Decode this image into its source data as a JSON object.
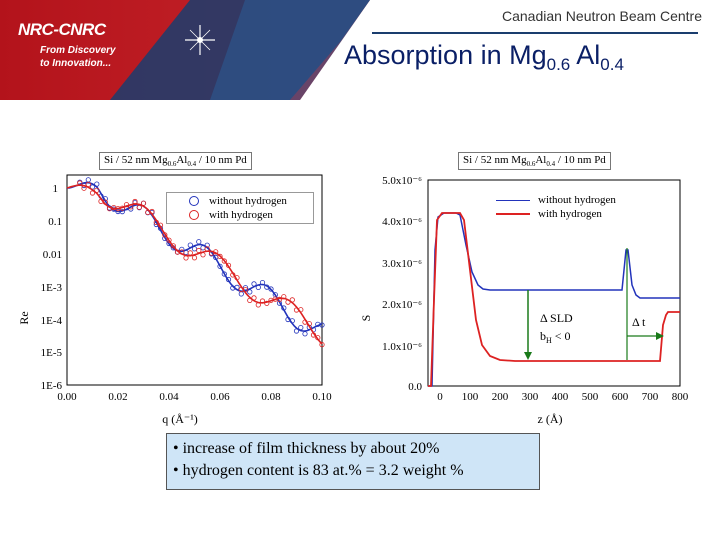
{
  "header": {
    "logo": "NRC-CNRC",
    "tagline_line1": "From Discovery",
    "tagline_line2": "to Innovation...",
    "org": "Canadian Neutron Beam Centre",
    "title_main": "Absorption in Mg",
    "title_sub1": "0.6",
    "title_mid": " Al",
    "title_sub2": "0.4"
  },
  "left_chart": {
    "title_part1": "Si / 52 nm Mg",
    "title_sub1": "0.6",
    "title_part2": "Al",
    "title_sub2": "0.4",
    "title_part3": " / 10 nm Pd",
    "y_ticks": [
      "1",
      "0.1",
      "0.01",
      "1E-3",
      "1E-4",
      "1E-5",
      "1E-6"
    ],
    "x_ticks": [
      "0.00",
      "0.02",
      "0.04",
      "0.06",
      "0.08",
      "0.10"
    ],
    "xlabel": "q (Å⁻¹)",
    "ylabel": "Re",
    "legend": [
      "without hydrogen",
      "with hydrogen"
    ],
    "colors": {
      "without": "#2233bb",
      "with": "#dd2222"
    }
  },
  "right_chart": {
    "title_part1": "Si / 52 nm Mg",
    "title_sub1": "0.6",
    "title_part2": "Al",
    "title_sub2": "0.4",
    "title_part3": " / 10 nm Pd",
    "y_ticks": [
      "5.0x10⁻⁶",
      "4.0x10⁻⁶",
      "3.0x10⁻⁶",
      "2.0x10⁻⁶",
      "1.0x10⁻⁶",
      "0.0"
    ],
    "x_ticks": [
      "0",
      "100",
      "200",
      "300",
      "400",
      "500",
      "600",
      "700",
      "800"
    ],
    "xlabel": "z (Å)",
    "ylabel": "S",
    "legend": [
      "without hydrogen",
      "with hydrogen"
    ],
    "annotation_sld": "Δ SLD",
    "annotation_bh": "b",
    "annotation_bh_sub": "H",
    "annotation_bh_rest": " < 0",
    "annotation_dt": "Δ t",
    "colors": {
      "without": "#2233bb",
      "with": "#dd2222",
      "arrow": "#1a7a1a"
    }
  },
  "notes": [
    "• increase of film thickness by about 20%",
    "• hydrogen content is 83 at.% = 3.2 weight %"
  ]
}
